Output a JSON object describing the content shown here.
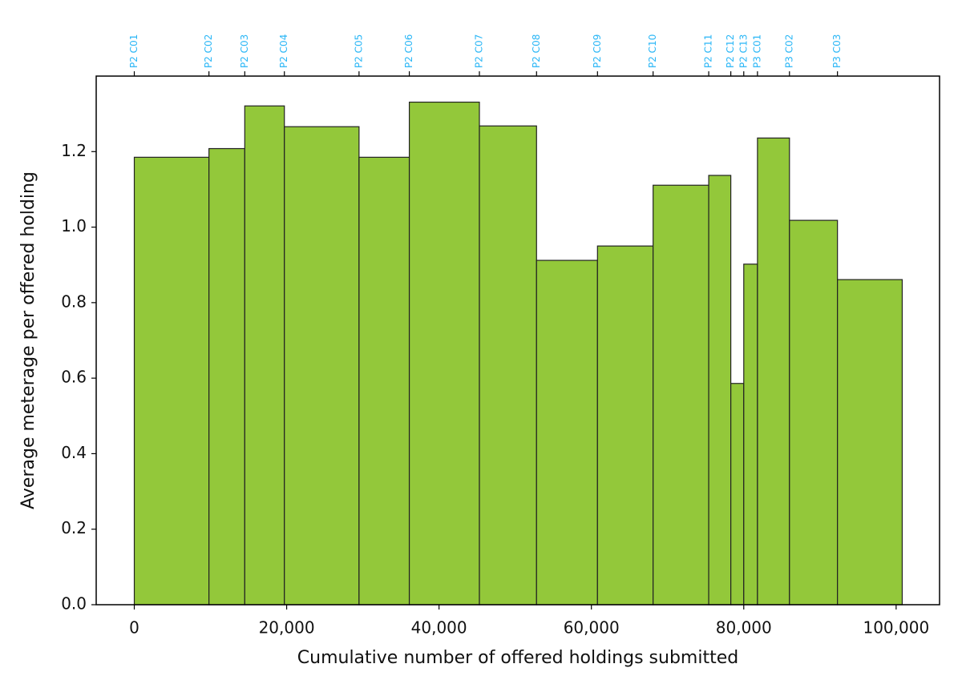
{
  "chart_data": {
    "type": "histogram",
    "x_label": "Cumulative number of offered holdings submitted",
    "y_label": "Average meterage per offered holding",
    "bins": [
      0,
      9800,
      14500,
      19700,
      29500,
      36100,
      45300,
      52800,
      60800,
      68100,
      75400,
      78300,
      80000,
      81800,
      86000,
      92300,
      100800
    ],
    "values": [
      1.185,
      1.208,
      1.321,
      1.266,
      1.185,
      1.331,
      1.268,
      0.912,
      0.95,
      1.111,
      1.137,
      0.586,
      0.902,
      1.236,
      1.018,
      0.861
    ],
    "color": "#93c83a",
    "edge_color": "#222222",
    "xlim": [
      -5000,
      105700
    ],
    "ylim": [
      0,
      1.4
    ],
    "xticks": [
      0,
      {
        "value": 20000,
        "label": "20,000"
      },
      {
        "value": 40000,
        "label": "40,000"
      },
      {
        "value": 60000,
        "label": "60,000"
      },
      {
        "value": 80000,
        "label": "80,000"
      },
      {
        "value": 100000,
        "label": "100,000"
      }
    ],
    "yticks": [
      {
        "value": 0,
        "label": "0.0"
      },
      0.2,
      0.4,
      0.6,
      0.8,
      {
        "value": 1,
        "label": "1.0"
      },
      1.2
    ],
    "x2ticks": [
      {
        "value": 0,
        "label": "P2 C01"
      },
      {
        "value": 9800,
        "label": "P2 C02"
      },
      {
        "value": 14500,
        "label": "P2 C03"
      },
      {
        "value": 19700,
        "label": "P2 C04"
      },
      {
        "value": 29500,
        "label": "P2 C05"
      },
      {
        "value": 36100,
        "label": "P2 C06"
      },
      {
        "value": 45300,
        "label": "P2 C07"
      },
      {
        "value": 52800,
        "label": "P2 C08"
      },
      {
        "value": 60800,
        "label": "P2 C09"
      },
      {
        "value": 68100,
        "label": "P2 C10"
      },
      {
        "value": 75400,
        "label": "P2 C11"
      },
      {
        "value": 78300,
        "label": "P2 C12"
      },
      {
        "value": 80000,
        "label": "P2 C13"
      },
      {
        "value": 81800,
        "label": "P3 C01"
      },
      {
        "value": 86000,
        "label": "P3 C02"
      },
      {
        "value": 92300,
        "label": "P3 C03"
      }
    ],
    "x2tick_color": "#29b6f6"
  }
}
